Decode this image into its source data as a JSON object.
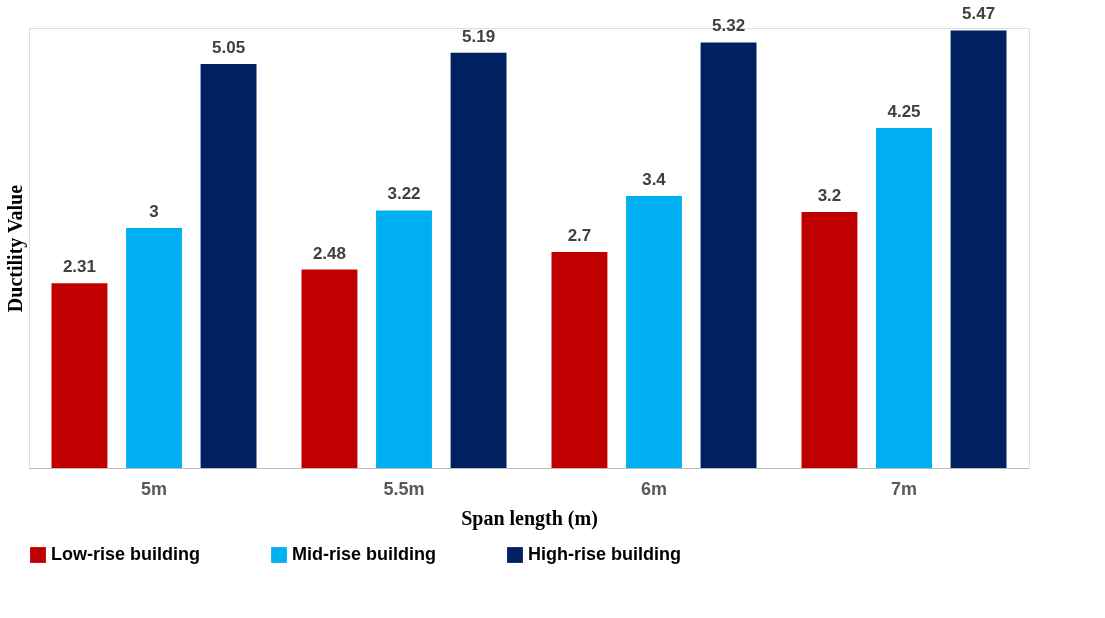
{
  "chart_data": {
    "type": "bar",
    "xlabel": "Span length (m)",
    "ylabel": "Ductility Value",
    "categories": [
      "5m",
      "5.5m",
      "6m",
      "7m"
    ],
    "series": [
      {
        "name": "Low-rise building",
        "color": "#c00000",
        "values": [
          2.31,
          2.48,
          2.7,
          3.2
        ]
      },
      {
        "name": "Mid-rise building",
        "color": "#00b0f0",
        "values": [
          3,
          3.22,
          3.4,
          4.25
        ]
      },
      {
        "name": "High-rise building",
        "color": "#002060",
        "values": [
          5.05,
          5.19,
          5.32,
          5.47
        ]
      }
    ],
    "data_labels": true,
    "grid": false,
    "legend": "bottom",
    "tick_labels": "x"
  }
}
